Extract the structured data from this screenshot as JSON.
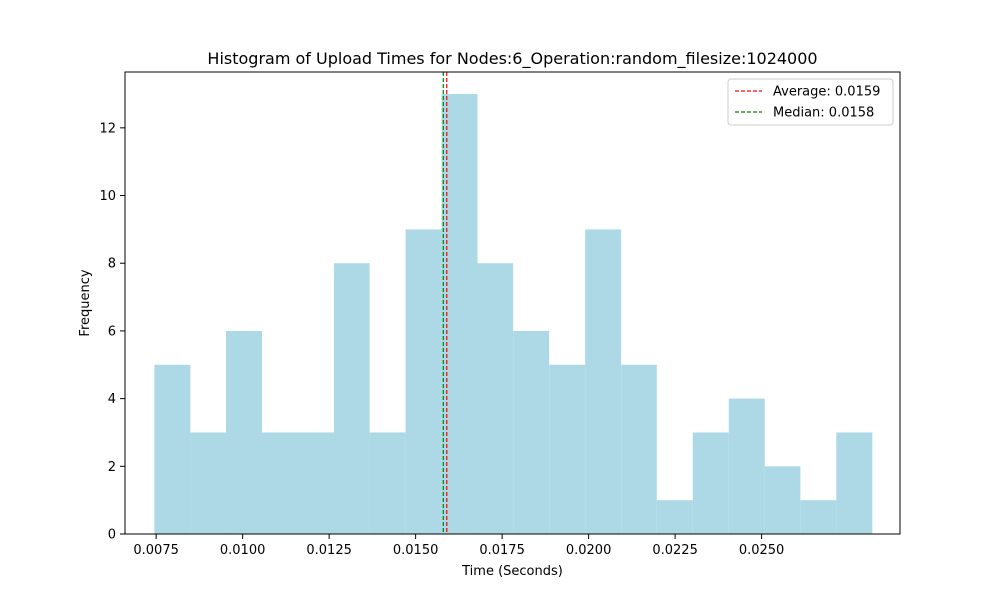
{
  "chart_data": {
    "type": "bar",
    "title": "Histogram of Upload Times for Nodes:6_Operation:random_filesize:1024000",
    "xlabel": "Time (Seconds)",
    "ylabel": "Frequency",
    "bins": [
      {
        "start": 0.00745,
        "end": 0.00849,
        "count": 5
      },
      {
        "start": 0.00849,
        "end": 0.00952,
        "count": 3
      },
      {
        "start": 0.00952,
        "end": 0.01056,
        "count": 6
      },
      {
        "start": 0.01056,
        "end": 0.0116,
        "count": 3
      },
      {
        "start": 0.0116,
        "end": 0.01264,
        "count": 3
      },
      {
        "start": 0.01264,
        "end": 0.01367,
        "count": 8
      },
      {
        "start": 0.01367,
        "end": 0.01471,
        "count": 3
      },
      {
        "start": 0.01471,
        "end": 0.01575,
        "count": 9
      },
      {
        "start": 0.01575,
        "end": 0.01679,
        "count": 13
      },
      {
        "start": 0.01679,
        "end": 0.01782,
        "count": 8
      },
      {
        "start": 0.01782,
        "end": 0.01886,
        "count": 6
      },
      {
        "start": 0.01886,
        "end": 0.0199,
        "count": 5
      },
      {
        "start": 0.0199,
        "end": 0.02094,
        "count": 9
      },
      {
        "start": 0.02094,
        "end": 0.02197,
        "count": 5
      },
      {
        "start": 0.02197,
        "end": 0.02301,
        "count": 1
      },
      {
        "start": 0.02301,
        "end": 0.02405,
        "count": 3
      },
      {
        "start": 0.02405,
        "end": 0.02509,
        "count": 4
      },
      {
        "start": 0.02509,
        "end": 0.02612,
        "count": 2
      },
      {
        "start": 0.02612,
        "end": 0.02716,
        "count": 1
      },
      {
        "start": 0.02716,
        "end": 0.0282,
        "count": 3
      }
    ],
    "xlim": [
      0.0066,
      0.029
    ],
    "ylim": [
      0,
      13.65
    ],
    "x_ticks": [
      "0.0075",
      "0.0100",
      "0.0125",
      "0.0150",
      "0.0175",
      "0.0200",
      "0.0225",
      "0.0250"
    ],
    "x_tick_values": [
      0.0075,
      0.01,
      0.0125,
      0.015,
      0.0175,
      0.02,
      0.0225,
      0.025
    ],
    "y_ticks": [
      "0",
      "2",
      "4",
      "6",
      "8",
      "10",
      "12"
    ],
    "y_tick_values": [
      0,
      2,
      4,
      6,
      8,
      10,
      12
    ],
    "vlines": [
      {
        "label": "Average: 0.0159",
        "x": 0.0159,
        "color": "#ff0000",
        "style": "dashed"
      },
      {
        "label": "Median: 0.0158",
        "x": 0.0158,
        "color": "#008000",
        "style": "dashed"
      }
    ],
    "bar_color": "#add8e6",
    "grid": false,
    "legend_position": "upper right"
  }
}
